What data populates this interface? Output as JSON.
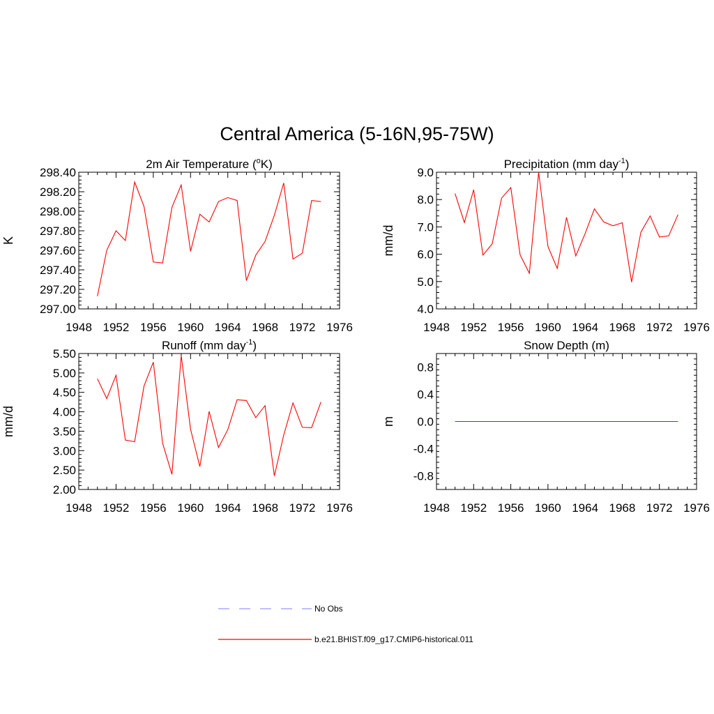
{
  "page_title": "Central America (5-16N,95-75W)",
  "colors": {
    "model": "#ff0000",
    "obs": "#9999ff",
    "axis": "#000000"
  },
  "legend": {
    "obs_label": "No Obs",
    "model_label": "b.e21.BHIST.f09_g17.CMIP6-historical.011"
  },
  "chart_data": [
    {
      "type": "line",
      "title_main": "2m Air Temperature (",
      "title_sup": "o",
      "title_end": "K)",
      "ylabel": "K",
      "xlim": [
        1948,
        1976
      ],
      "ylim": [
        297.0,
        298.4
      ],
      "xticks": [
        1948,
        1952,
        1956,
        1960,
        1964,
        1968,
        1972,
        1976
      ],
      "yticks": [
        297.0,
        297.2,
        297.4,
        297.6,
        297.8,
        298.0,
        298.2,
        298.4
      ],
      "ytick_labels": [
        "297.00",
        "297.20",
        "297.40",
        "297.60",
        "297.80",
        "298.00",
        "298.20",
        "298.40"
      ],
      "series": [
        {
          "x": [
            1950,
            1951,
            1952,
            1953,
            1954,
            1955,
            1956,
            1957,
            1958,
            1959,
            1960,
            1961,
            1962,
            1963,
            1964,
            1965,
            1966,
            1967,
            1968,
            1969,
            1970,
            1971,
            1972,
            1973,
            1974
          ],
          "y": [
            297.13,
            297.6,
            297.8,
            297.7,
            298.3,
            298.05,
            297.48,
            297.47,
            298.04,
            298.27,
            297.59,
            297.97,
            297.89,
            298.1,
            298.14,
            298.11,
            297.29,
            297.55,
            297.69,
            297.96,
            298.29,
            297.51,
            297.57,
            298.11,
            298.1
          ]
        }
      ]
    },
    {
      "type": "line",
      "title_main": "Precipitation (mm day",
      "title_sup": "-1",
      "title_end": ")",
      "ylabel": "mm/d",
      "xlim": [
        1948,
        1976
      ],
      "ylim": [
        4.0,
        9.0
      ],
      "xticks": [
        1948,
        1952,
        1956,
        1960,
        1964,
        1968,
        1972,
        1976
      ],
      "yticks": [
        4,
        5,
        6,
        7,
        8,
        9
      ],
      "ytick_labels": [
        "4.0",
        "5.0",
        "6.0",
        "7.0",
        "8.0",
        "9.0"
      ],
      "series": [
        {
          "x": [
            1950,
            1951,
            1952,
            1953,
            1954,
            1955,
            1956,
            1957,
            1958,
            1959,
            1960,
            1961,
            1962,
            1963,
            1964,
            1965,
            1966,
            1967,
            1968,
            1969,
            1970,
            1971,
            1972,
            1973,
            1974
          ],
          "y": [
            8.22,
            7.16,
            8.36,
            5.97,
            6.38,
            8.05,
            8.44,
            5.98,
            5.3,
            9.0,
            6.28,
            5.48,
            7.35,
            5.94,
            6.75,
            7.66,
            7.18,
            7.04,
            7.15,
            4.98,
            6.8,
            7.4,
            6.63,
            6.67,
            7.45
          ]
        }
      ]
    },
    {
      "type": "line",
      "title_main": "Runoff (mm day",
      "title_sup": "-1",
      "title_end": ")",
      "ylabel": "mm/d",
      "xlim": [
        1948,
        1976
      ],
      "ylim": [
        2.0,
        5.5
      ],
      "xticks": [
        1948,
        1952,
        1956,
        1960,
        1964,
        1968,
        1972,
        1976
      ],
      "yticks": [
        2.0,
        2.5,
        3.0,
        3.5,
        4.0,
        4.5,
        5.0,
        5.5
      ],
      "ytick_labels": [
        "2.00",
        "2.50",
        "3.00",
        "3.50",
        "4.00",
        "4.50",
        "5.00",
        "5.50"
      ],
      "series": [
        {
          "x": [
            1950,
            1951,
            1952,
            1953,
            1954,
            1955,
            1956,
            1957,
            1958,
            1959,
            1960,
            1961,
            1962,
            1963,
            1964,
            1965,
            1966,
            1967,
            1968,
            1969,
            1970,
            1971,
            1972,
            1973,
            1974
          ],
          "y": [
            4.85,
            4.34,
            4.94,
            3.27,
            3.23,
            4.66,
            5.28,
            3.19,
            2.39,
            5.45,
            3.55,
            2.59,
            4.01,
            3.08,
            3.54,
            4.31,
            4.29,
            3.85,
            4.16,
            2.35,
            3.4,
            4.23,
            3.6,
            3.59,
            4.25
          ]
        }
      ]
    },
    {
      "type": "line",
      "title_main": "Snow Depth (m)",
      "title_sup": "",
      "title_end": "",
      "ylabel": "m",
      "xlim": [
        1948,
        1976
      ],
      "ylim": [
        -1.0,
        1.0
      ],
      "xticks": [
        1948,
        1952,
        1956,
        1960,
        1964,
        1968,
        1972,
        1976
      ],
      "yticks": [
        -0.8,
        -0.4,
        0.0,
        0.4,
        0.8
      ],
      "ytick_labels": [
        "-0.8",
        "-0.4",
        "0.0",
        "0.4",
        "0.8"
      ],
      "series": [
        {
          "x": [
            1950,
            1951,
            1952,
            1953,
            1954,
            1955,
            1956,
            1957,
            1958,
            1959,
            1960,
            1961,
            1962,
            1963,
            1964,
            1965,
            1966,
            1967,
            1968,
            1969,
            1970,
            1971,
            1972,
            1973,
            1974
          ],
          "y": [
            0,
            0,
            0,
            0,
            0,
            0,
            0,
            0,
            0,
            0,
            0,
            0,
            0,
            0,
            0,
            0,
            0,
            0,
            0,
            0,
            0,
            0,
            0,
            0,
            0
          ]
        }
      ]
    }
  ]
}
